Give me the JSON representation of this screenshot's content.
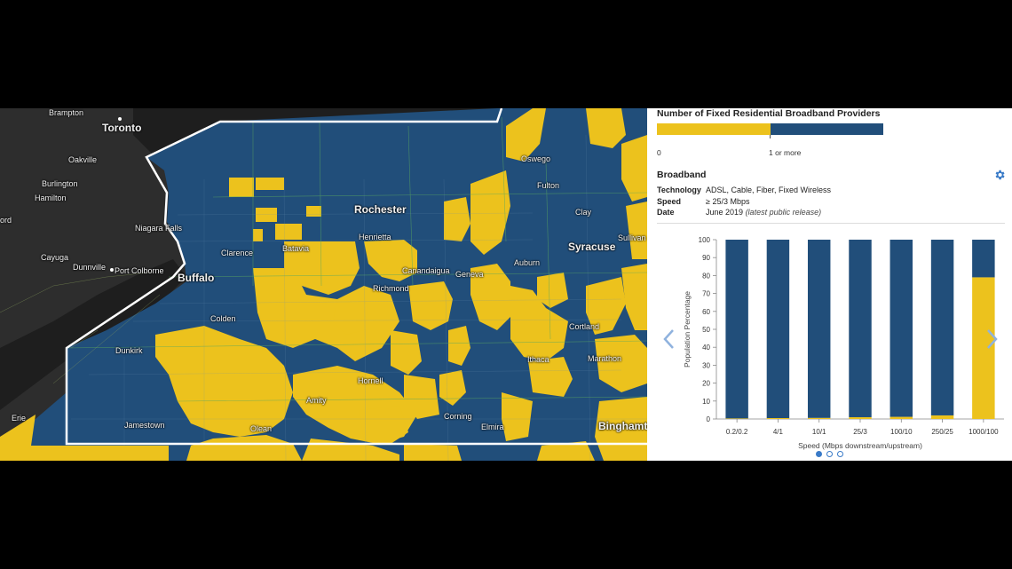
{
  "map": {
    "colors": {
      "zero_providers": "#ecc21d",
      "one_or_more": "#214e7a",
      "lake": "#232323",
      "land_dark": "#2c2c2c",
      "boundary": "#ffffff"
    },
    "cities": [
      {
        "name": "Brampton",
        "type": "minor"
      },
      {
        "name": "Toronto",
        "type": "major"
      },
      {
        "name": "Oakville",
        "type": "minor"
      },
      {
        "name": "Burlington",
        "type": "minor"
      },
      {
        "name": "Hamilton",
        "type": "minor"
      },
      {
        "name": "ord",
        "type": "minor"
      },
      {
        "name": "Niagara Falls",
        "type": "minor"
      },
      {
        "name": "Cayuga",
        "type": "minor"
      },
      {
        "name": "Dunnville",
        "type": "minor"
      },
      {
        "name": "Port Colborne",
        "type": "minor"
      },
      {
        "name": "Buffalo",
        "type": "major"
      },
      {
        "name": "Clarence",
        "type": "minor"
      },
      {
        "name": "Batavia",
        "type": "minor"
      },
      {
        "name": "Rochester",
        "type": "major"
      },
      {
        "name": "Henrietta",
        "type": "minor"
      },
      {
        "name": "Canandaigua",
        "type": "minor"
      },
      {
        "name": "Geneva",
        "type": "minor"
      },
      {
        "name": "Richmond",
        "type": "minor"
      },
      {
        "name": "Oswego",
        "type": "minor"
      },
      {
        "name": "Fulton",
        "type": "minor"
      },
      {
        "name": "Clay",
        "type": "minor"
      },
      {
        "name": "Syracuse",
        "type": "major"
      },
      {
        "name": "Sullivan",
        "type": "minor"
      },
      {
        "name": "Auburn",
        "type": "minor"
      },
      {
        "name": "Colden",
        "type": "minor"
      },
      {
        "name": "Dunkirk",
        "type": "minor"
      },
      {
        "name": "Cortland",
        "type": "minor"
      },
      {
        "name": "Ithaca",
        "type": "minor"
      },
      {
        "name": "Marathon",
        "type": "minor"
      },
      {
        "name": "Hornell",
        "type": "minor"
      },
      {
        "name": "Amity",
        "type": "minor"
      },
      {
        "name": "Corning",
        "type": "minor"
      },
      {
        "name": "Elmira",
        "type": "minor"
      },
      {
        "name": "Binghamton",
        "type": "major"
      },
      {
        "name": "Jamestown",
        "type": "minor"
      },
      {
        "name": "Olean",
        "type": "minor"
      },
      {
        "name": "Erie",
        "type": "minor"
      }
    ]
  },
  "panel": {
    "legend_title": "Number of Fixed Residential Broadband Providers",
    "legend_min": "0",
    "legend_mid": "1 or more",
    "section_title": "Broadband",
    "technology_key": "Technology",
    "technology_val": "ADSL, Cable, Fiber, Fixed Wireless",
    "speed_key": "Speed",
    "speed_val": "≥ 25/3 Mbps",
    "date_key": "Date",
    "date_val": "June 2019",
    "date_note": "(latest public release)",
    "gear_icon": "gear-icon",
    "prev_icon": "chevron-left-icon",
    "next_icon": "chevron-right-icon",
    "carousel_pages": 3,
    "carousel_active": 1
  },
  "chart_data": {
    "type": "bar",
    "stacked": true,
    "categories": [
      "0.2/0.2",
      "4/1",
      "10/1",
      "25/3",
      "100/10",
      "250/25",
      "1000/100"
    ],
    "series": [
      {
        "color": "#ecc21d",
        "values": [
          0.3,
          0.5,
          0.6,
          1,
          1.2,
          2,
          79
        ]
      },
      {
        "color": "#214e7a",
        "values": [
          99.7,
          99.5,
          99.4,
          99,
          98.8,
          98,
          21
        ]
      }
    ],
    "xlabel": "Speed (Mbps downstream/upstream)",
    "ylabel": "Population Percentage",
    "ylim": [
      0,
      100
    ],
    "yticks": [
      0,
      10,
      20,
      30,
      40,
      50,
      60,
      70,
      80,
      90,
      100
    ],
    "grid": false
  }
}
